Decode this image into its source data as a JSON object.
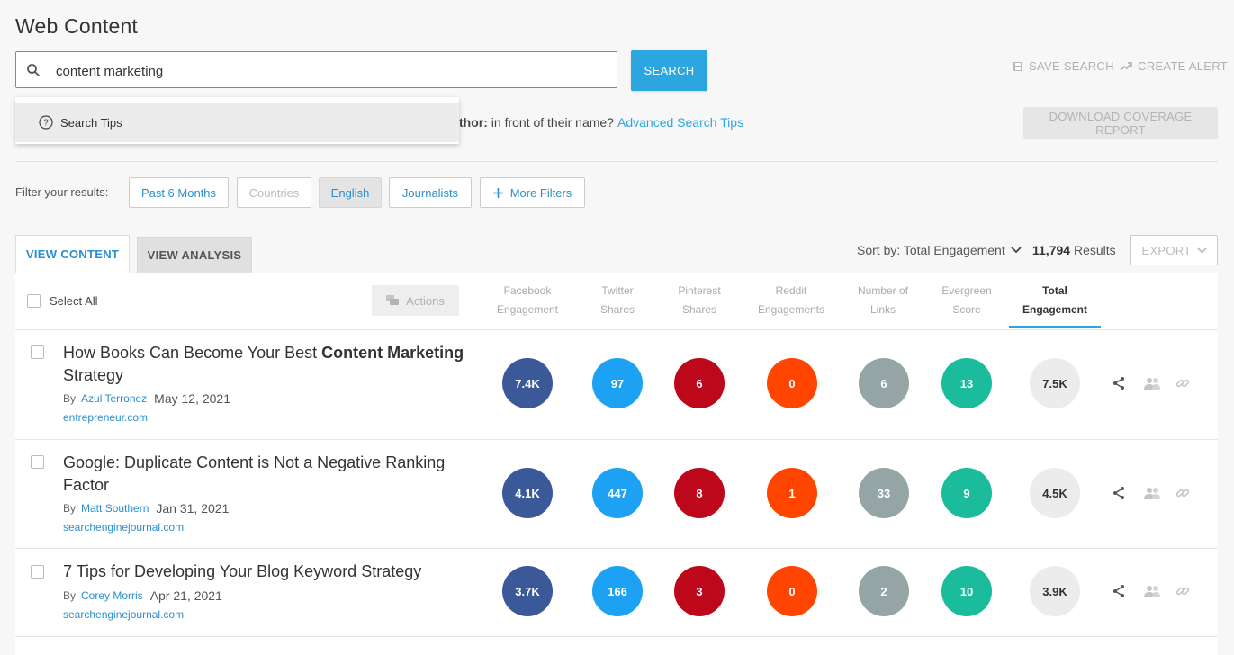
{
  "header": {
    "title": "Web Content"
  },
  "search": {
    "value": "content marketing",
    "button_label": "SEARCH",
    "save_search_label": "SAVE SEARCH",
    "create_alert_label": "CREATE ALERT",
    "dropdown_item": "Search Tips",
    "hint_bold": "thor:",
    "hint_rest": " in front of their name?",
    "advanced_tips_label": "Advanced Search Tips",
    "download_label": "DOWNLOAD COVERAGE REPORT"
  },
  "filters": {
    "label": "Filter your results:",
    "buttons": [
      "Past 6 Months",
      "Countries",
      "English",
      "Journalists",
      "More Filters"
    ]
  },
  "tabs": {
    "view_content": "VIEW CONTENT",
    "view_analysis": "VIEW ANALYSIS"
  },
  "toolbar": {
    "sort_label": "Sort by: Total Engagement",
    "results_count": "11,794",
    "results_label": " Results",
    "export_label": "EXPORT"
  },
  "table": {
    "select_all": "Select All",
    "actions_label": "Actions",
    "columns": [
      [
        "Facebook",
        "Engagement"
      ],
      [
        "Twitter",
        "Shares"
      ],
      [
        "Pinterest",
        "Shares"
      ],
      [
        "Reddit",
        "Engagements"
      ],
      [
        "Number of",
        "Links"
      ],
      [
        "Evergreen",
        "Score"
      ],
      [
        "Total",
        "Engagement"
      ]
    ],
    "rows": [
      {
        "title_pre": "How Books Can Become Your Best ",
        "title_bold": "Content Marketing",
        "title_post": " Strategy",
        "by": "By",
        "author": "Azul Terronez",
        "date": "May 12, 2021",
        "domain": "entrepreneur.com",
        "metrics": [
          "7.4K",
          "97",
          "6",
          "0",
          "6",
          "13",
          "7.5K"
        ]
      },
      {
        "title_pre": "Google: Duplicate Content is Not a Negative Ranking Factor",
        "title_bold": "",
        "title_post": "",
        "by": "By",
        "author": "Matt Southern",
        "date": "Jan 31, 2021",
        "domain": "searchenginejournal.com",
        "metrics": [
          "4.1K",
          "447",
          "8",
          "1",
          "33",
          "9",
          "4.5K"
        ]
      },
      {
        "title_pre": "7 Tips for Developing Your Blog Keyword Strategy",
        "title_bold": "",
        "title_post": "",
        "by": "By",
        "author": "Corey Morris",
        "date": "Apr 21, 2021",
        "domain": "searchenginejournal.com",
        "metrics": [
          "3.7K",
          "166",
          "3",
          "0",
          "2",
          "10",
          "3.9K"
        ]
      }
    ]
  },
  "colors": {
    "accent": "#2ba6de",
    "facebook": "#3b5998",
    "twitter": "#1da1f2",
    "pinterest": "#bd081c",
    "reddit": "#ff4500",
    "links": "#95a5a6",
    "evergreen": "#1abc9c",
    "total": "#ececec"
  }
}
